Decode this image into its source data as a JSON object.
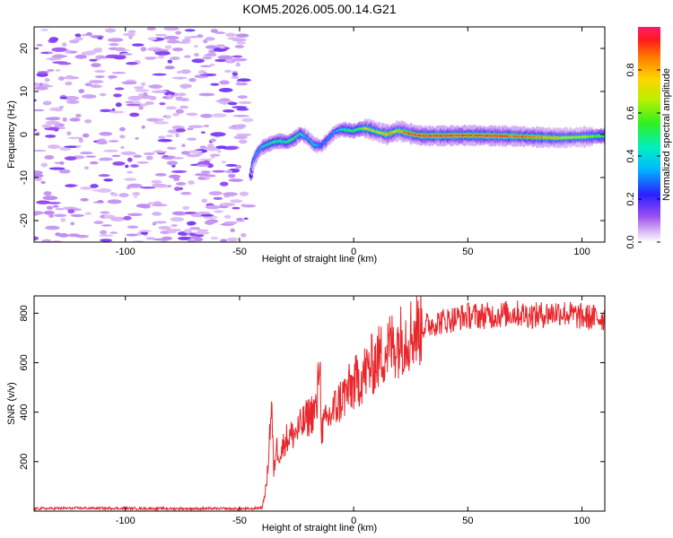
{
  "title": "KOM5.2026.005.00.14.G21",
  "chart_data": [
    {
      "type": "heatmap",
      "name": "spectrogram",
      "xlabel": "Height of straight line (km)",
      "ylabel": "Frequency (Hz)",
      "xlim": [
        -140,
        110
      ],
      "ylim": [
        -25,
        25
      ],
      "xticks": [
        -100,
        -50,
        0,
        50,
        100
      ],
      "yticks": [
        -20,
        -10,
        0,
        10,
        20
      ],
      "xtick_labels": [
        "-100",
        "-50",
        "0",
        "50",
        "100"
      ],
      "ytick_labels": [
        "-20",
        "-10",
        "0",
        "10",
        "20"
      ],
      "colorbar": {
        "label": "Normalized spectral amplitude",
        "range": [
          0,
          1
        ],
        "ticks": [
          0.0,
          0.2,
          0.4,
          0.6,
          0.8
        ],
        "tick_labels": [
          "0.0",
          "0.2",
          "0.4",
          "0.6",
          "0.8"
        ]
      },
      "ridge": {
        "description": "dominant frequency track (km, Hz, normalized amplitude)",
        "x": [
          -45,
          -44,
          -42,
          -40,
          -38,
          -35,
          -32,
          -29,
          -26,
          -23,
          -20,
          -17,
          -14,
          -11,
          -8,
          -5,
          -2,
          0,
          3,
          6,
          10,
          15,
          20,
          25,
          30,
          40,
          50,
          60,
          70,
          80,
          90,
          100,
          110
        ],
        "y": [
          -9.5,
          -6.5,
          -4.2,
          -3.0,
          -2.5,
          -1.8,
          -1.5,
          -1.8,
          -1.0,
          0.2,
          -0.8,
          -2.4,
          -2.6,
          -1.0,
          0.6,
          1.2,
          1.0,
          0.8,
          1.3,
          1.4,
          0.7,
          0.0,
          0.9,
          0.2,
          -0.3,
          -0.3,
          -0.2,
          -0.3,
          -0.4,
          -0.6,
          -0.8,
          -0.6,
          -0.3
        ],
        "amp": [
          0.25,
          0.3,
          0.35,
          0.4,
          0.45,
          0.5,
          0.52,
          0.5,
          0.55,
          0.45,
          0.35,
          0.4,
          0.3,
          0.3,
          0.35,
          0.45,
          0.55,
          0.55,
          0.6,
          0.7,
          0.65,
          0.85,
          0.75,
          0.9,
          0.95,
          0.95,
          0.95,
          0.95,
          0.92,
          0.85,
          0.75,
          0.7,
          0.55
        ]
      },
      "noise_region_km": [
        -140,
        -46
      ]
    },
    {
      "type": "line",
      "name": "snr",
      "xlabel": "Height of straight line (km)",
      "ylabel": "SNR (v/v)",
      "xlim": [
        -140,
        110
      ],
      "ylim": [
        0,
        870
      ],
      "xticks": [
        -100,
        -50,
        0,
        50,
        100
      ],
      "yticks": [
        200,
        400,
        600,
        800
      ],
      "xtick_labels": [
        "-100",
        "-50",
        "0",
        "50",
        "100"
      ],
      "ytick_labels": [
        "200",
        "400",
        "600",
        "800"
      ],
      "color": "#e8262b",
      "x": [
        -140,
        -120,
        -100,
        -80,
        -60,
        -45,
        -40,
        -38,
        -36,
        -35,
        -34,
        -32,
        -30,
        -25,
        -20,
        -16,
        -15,
        -14,
        -10,
        -5,
        0,
        5,
        10,
        15,
        20,
        25,
        30,
        35,
        40,
        50,
        60,
        70,
        80,
        90,
        100,
        110
      ],
      "y": [
        10,
        12,
        11,
        10,
        10,
        9,
        15,
        120,
        440,
        150,
        260,
        230,
        290,
        320,
        380,
        420,
        660,
        330,
        390,
        460,
        510,
        560,
        610,
        660,
        690,
        720,
        745,
        760,
        770,
        790,
        790,
        800,
        790,
        805,
        785,
        780
      ]
    }
  ]
}
